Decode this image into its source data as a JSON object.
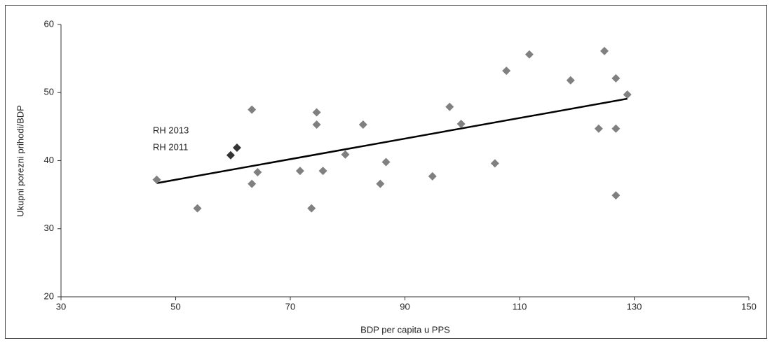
{
  "chart_data": {
    "type": "scatter",
    "xlabel": "BDP per capita u PPS",
    "ylabel": "Ukupni porezni prihodi/BDP",
    "annotations": [
      "RH 2013",
      "RH 2011"
    ],
    "xlim": [
      30,
      150
    ],
    "xticks": [
      30,
      50,
      70,
      90,
      110,
      130,
      150
    ],
    "ylim": [
      20,
      60
    ],
    "yticks": [
      20,
      30,
      40,
      50,
      60
    ],
    "series": [
      {
        "color": "#808080",
        "x": [
          46.7,
          53.8,
          63.3,
          63.3,
          64.3,
          71.7,
          73.7,
          74.6,
          74.6,
          75.7,
          79.6,
          82.7,
          86.7,
          85.7,
          94.8,
          97.8,
          99.8,
          105.7,
          107.7,
          111.7,
          118.9,
          123.8,
          124.8,
          126.8,
          126.8,
          126.8,
          128.8
        ],
        "values": [
          37.2,
          33.0,
          36.6,
          47.5,
          38.3,
          38.5,
          33.0,
          47.1,
          45.3,
          38.5,
          40.9,
          45.3,
          39.8,
          36.6,
          37.7,
          47.9,
          45.4,
          39.6,
          53.2,
          55.6,
          51.8,
          44.7,
          56.1,
          34.9,
          52.1,
          44.7,
          49.7
        ]
      },
      {
        "color": "#333333",
        "x": [
          59.6,
          60.7
        ],
        "values": [
          40.8,
          41.9
        ]
      }
    ],
    "trend": {
      "color": "#000000",
      "x": [
        46.7,
        128.8
      ],
      "values": [
        36.7,
        49.1
      ]
    }
  }
}
